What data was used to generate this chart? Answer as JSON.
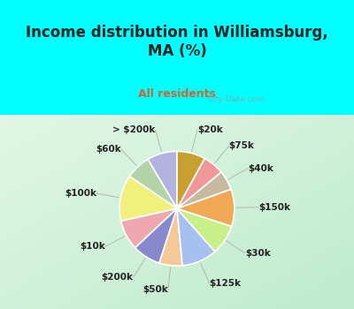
{
  "title": "Income distribution in Williamsburg,\nMA (%)",
  "subtitle": "All residents",
  "background_color": "#00FFFF",
  "chart_bg_colors": [
    "#e8f8f0",
    "#d0eedd",
    "#c0e8cc"
  ],
  "labels": [
    "> $200k",
    "$60k",
    "$100k",
    "$10k",
    "$200k",
    "$50k",
    "$125k",
    "$30k",
    "$150k",
    "$40k",
    "$75k",
    "$20k"
  ],
  "values": [
    8.5,
    7.0,
    13.0,
    8.5,
    8.0,
    6.5,
    10.0,
    8.5,
    10.5,
    5.5,
    6.0,
    8.0
  ],
  "colors": [
    "#b3b3e0",
    "#b3d4a8",
    "#f0f07a",
    "#f0a8b0",
    "#8888cc",
    "#f5c898",
    "#a8c0f0",
    "#c8f088",
    "#f0a855",
    "#c8b8a0",
    "#f09898",
    "#c8a030"
  ],
  "wedge_edge_color": "#ffffff",
  "title_color": "#222222",
  "subtitle_color": "#cc6633",
  "label_color": "#222222",
  "label_fontsize": 7.5,
  "title_fontsize": 12,
  "subtitle_fontsize": 9,
  "watermark": "City-Data.com",
  "startangle": 90
}
